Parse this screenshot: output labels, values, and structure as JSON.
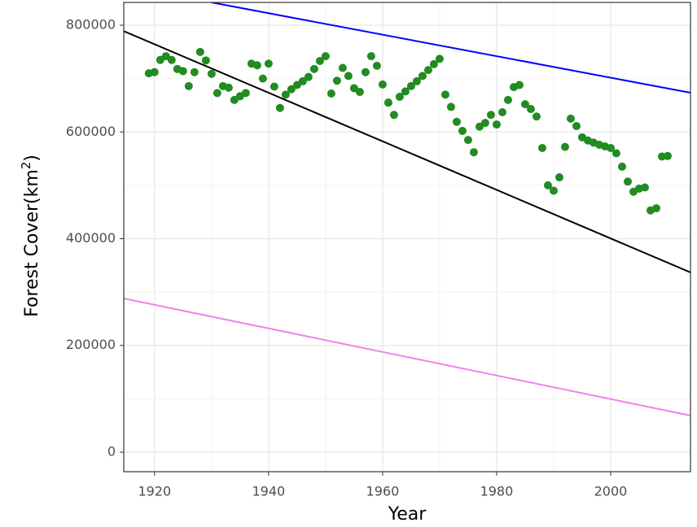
{
  "chart_data": {
    "type": "scatter",
    "xlabel": "Year",
    "ylabel": "Forest Cover(km",
    "ylabel_exponent": "2",
    "ylabel_close": ")",
    "xlim": [
      1914.6,
      2014
    ],
    "ylim": [
      -36600,
      842700
    ],
    "xticks": [
      1920,
      1940,
      1960,
      1980,
      2000
    ],
    "yticks": [
      0,
      200000,
      400000,
      600000,
      800000
    ],
    "grid": true,
    "series": [
      {
        "type": "scatter",
        "color": "#228b22",
        "x": [
          1919,
          1920,
          1921,
          1922,
          1923,
          1924,
          1925,
          1926,
          1927,
          1928,
          1929,
          1930,
          1931,
          1932,
          1933,
          1934,
          1935,
          1936,
          1937,
          1938,
          1939,
          1940,
          1941,
          1942,
          1943,
          1944,
          1945,
          1946,
          1947,
          1948,
          1949,
          1950,
          1951,
          1952,
          1953,
          1954,
          1955,
          1956,
          1957,
          1958,
          1959,
          1960,
          1961,
          1962,
          1963,
          1964,
          1965,
          1966,
          1967,
          1968,
          1969,
          1970,
          1971,
          1972,
          1973,
          1974,
          1975,
          1976,
          1977,
          1978,
          1979,
          1980,
          1981,
          1982,
          1983,
          1984,
          1985,
          1986,
          1987,
          1988,
          1989,
          1990,
          1991,
          1992,
          1993,
          1994,
          1995,
          1996,
          1997,
          1998,
          1999,
          2000,
          2001,
          2002,
          2003,
          2004,
          2005,
          2006,
          2007,
          2008,
          2009,
          2010
        ],
        "values": [
          710000,
          712000,
          735000,
          742000,
          735000,
          718000,
          714000,
          686000,
          712000,
          750000,
          734000,
          709000,
          673000,
          686000,
          683000,
          660000,
          667000,
          673000,
          728000,
          725000,
          700000,
          728000,
          685000,
          645000,
          670000,
          680000,
          688000,
          695000,
          703000,
          718000,
          733000,
          742000,
          672000,
          696000,
          720000,
          705000,
          682000,
          675000,
          712000,
          742000,
          724000,
          689000,
          655000,
          632000,
          666000,
          676000,
          686000,
          695000,
          705000,
          716000,
          727000,
          737000,
          670000,
          647000,
          619000,
          602000,
          585000,
          562000,
          610000,
          617000,
          632000,
          614000,
          637000,
          660000,
          684000,
          688000,
          652000,
          643000,
          629000,
          570000,
          500000,
          490000,
          515000,
          572000,
          625000,
          611000,
          590000,
          584000,
          580000,
          576000,
          573000,
          570000,
          560000,
          535000,
          507000,
          488000,
          494000,
          496000,
          453000,
          457000,
          554000,
          555000
        ]
      },
      {
        "type": "line",
        "color": "#0000ff",
        "x": [
          1930,
          2014
        ],
        "values": [
          842700,
          673500
        ]
      },
      {
        "type": "line",
        "color": "#000000",
        "x": [
          1914.6,
          2014
        ],
        "values": [
          789000,
          336800
        ]
      },
      {
        "type": "line",
        "color": "#ee82ee",
        "x": [
          1914.6,
          2014
        ],
        "values": [
          288000,
          68600
        ]
      }
    ]
  }
}
